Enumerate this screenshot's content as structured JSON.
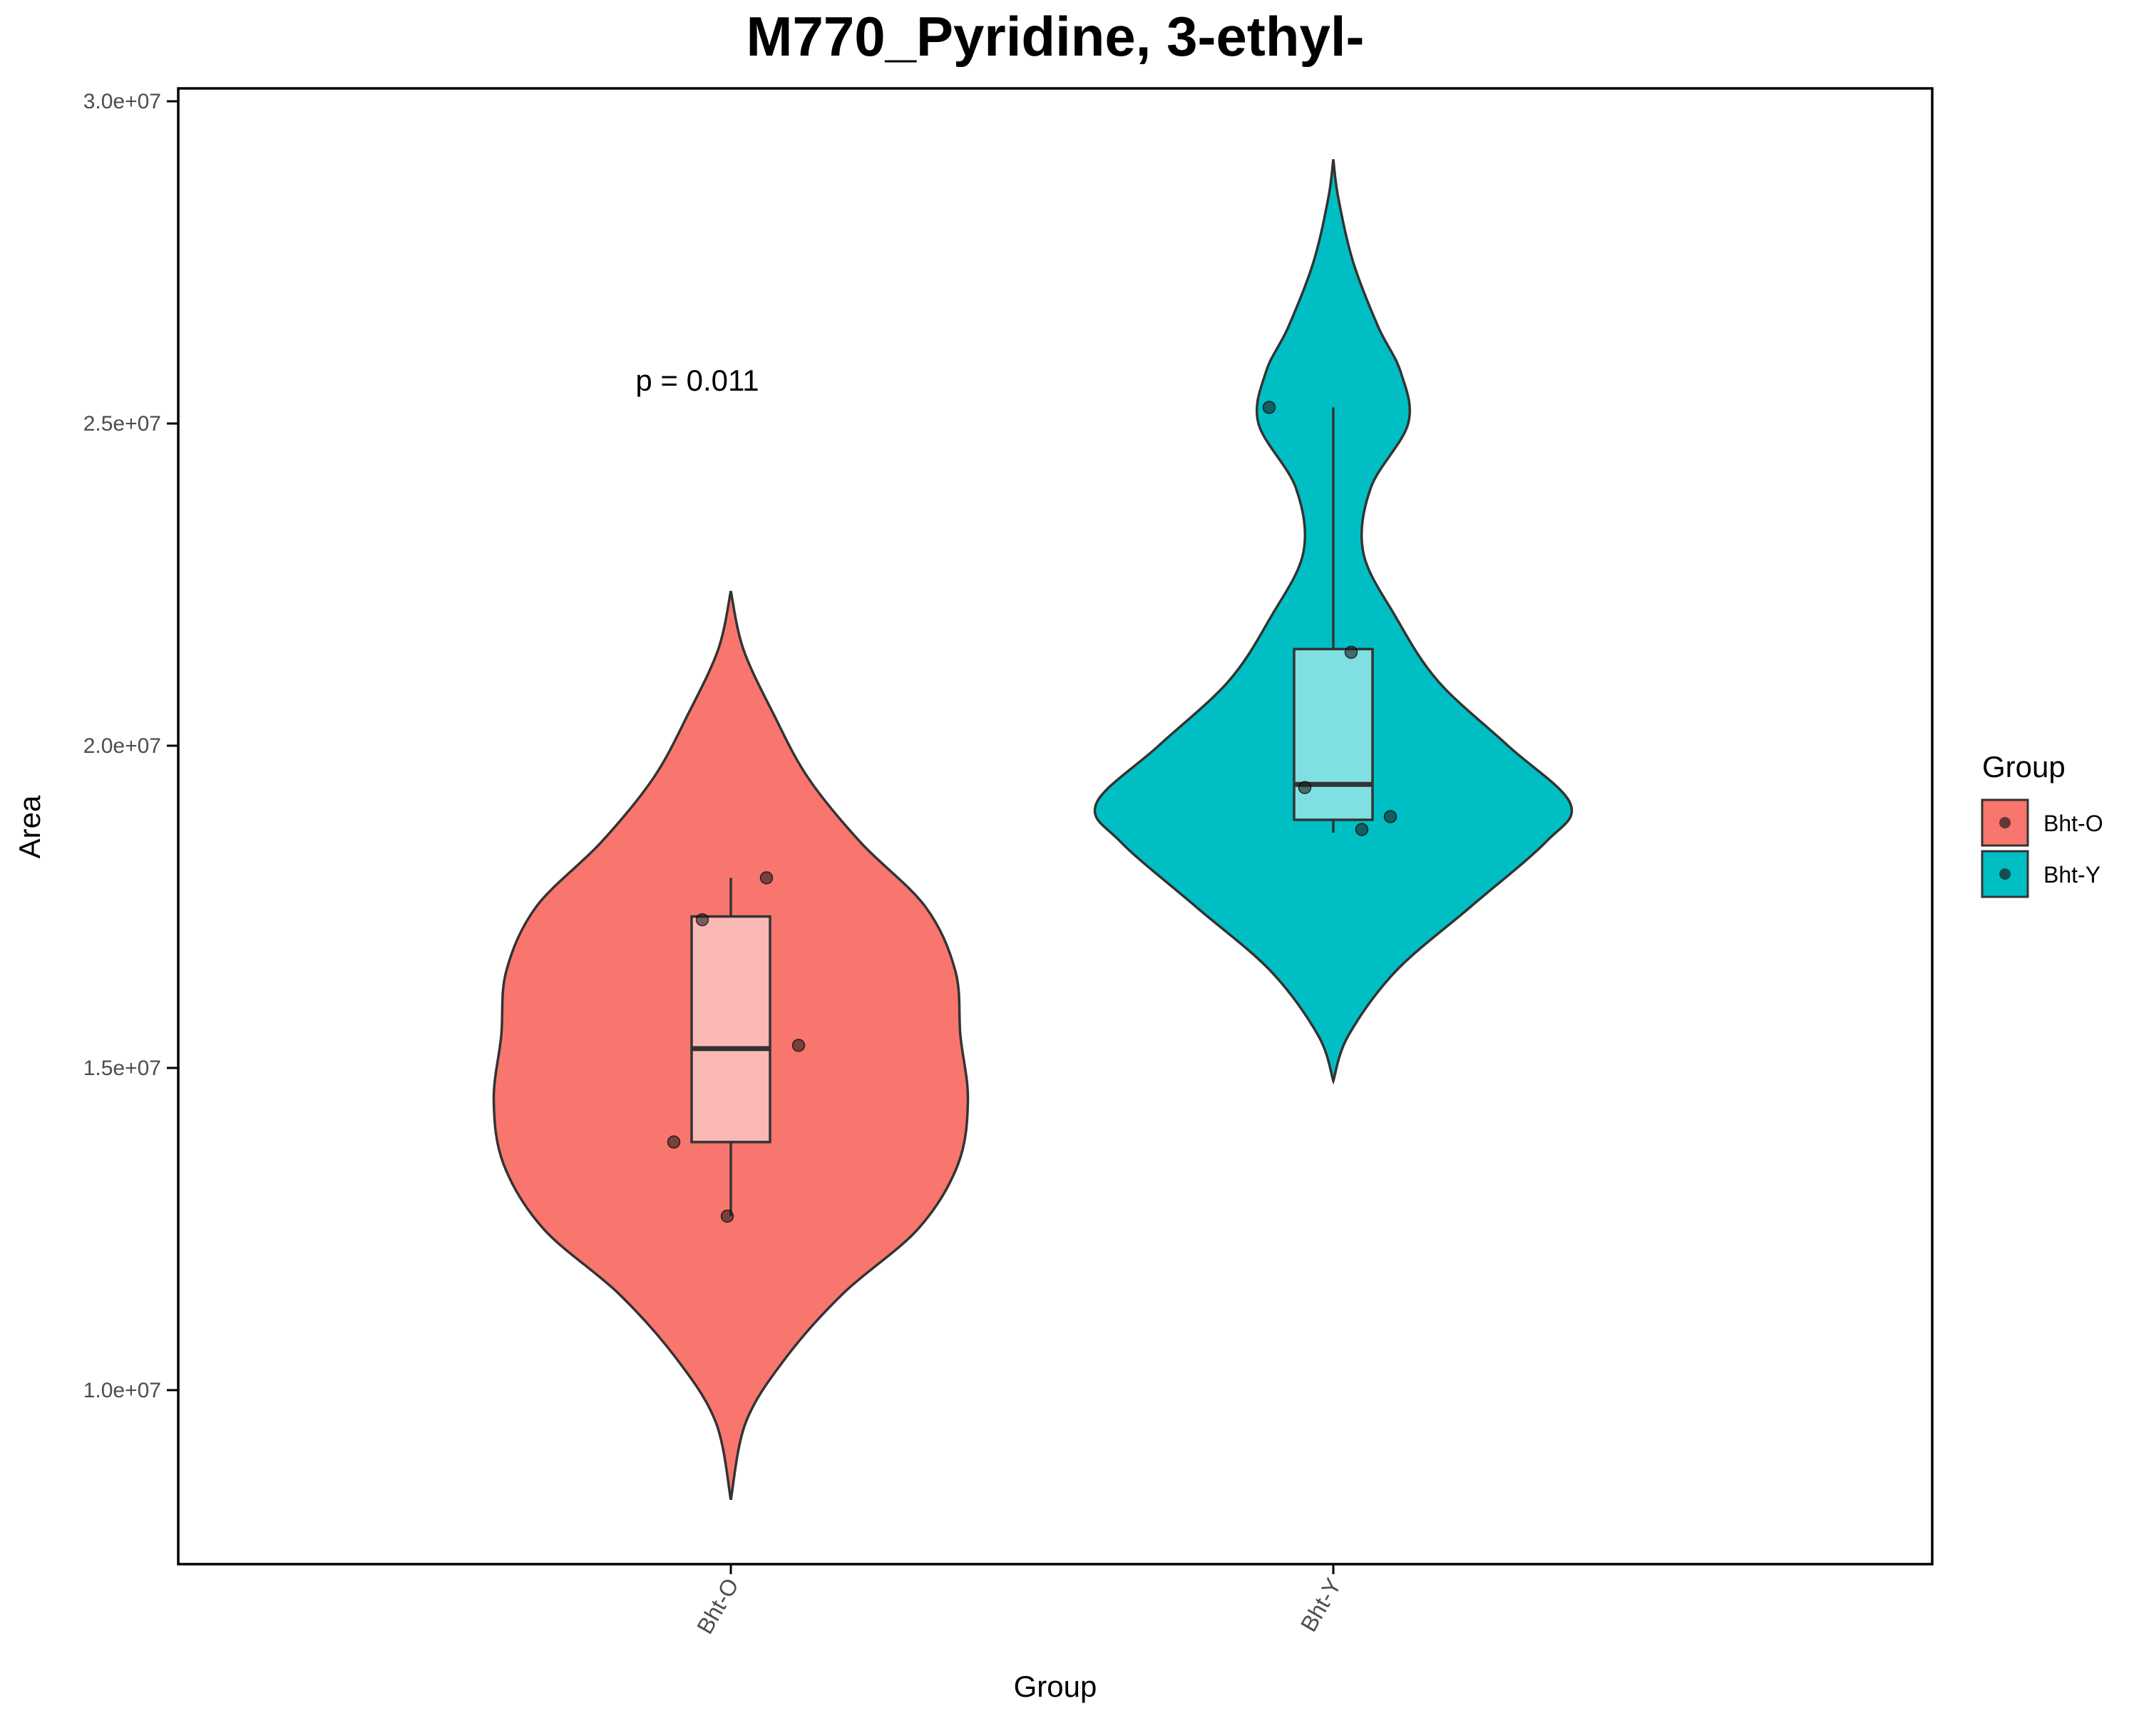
{
  "chart_data": {
    "type": "violin",
    "title": "M770_Pyridine, 3-ethyl-",
    "xlabel": "Group",
    "ylabel": "Area",
    "categories": [
      "Bht-O",
      "Bht-Y"
    ],
    "ylim": [
      7300000,
      30200000
    ],
    "yticks": [
      10000000,
      15000000,
      20000000,
      25000000,
      30000000
    ],
    "ytick_labels": [
      "1.0e+07",
      "1.5e+07",
      "2.0e+07",
      "2.5e+07",
      "3.0e+07"
    ],
    "annotation": "p = 0.011",
    "legend": {
      "title": "Group",
      "position": "right",
      "entries": [
        "Bht-O",
        "Bht-Y"
      ]
    },
    "series": [
      {
        "name": "Bht-O",
        "color": "#F8766D",
        "box_color": "#FBB9B5",
        "violin_range": [
          8300000,
          22400000
        ],
        "box": {
          "min": 12700000,
          "q1": 13850000,
          "median": 15300000,
          "q3": 17350000,
          "max": 17950000
        },
        "points": [
          {
            "x": -0.16,
            "y": 13850000
          },
          {
            "x": -0.08,
            "y": 17300000
          },
          {
            "x": -0.01,
            "y": 12700000
          },
          {
            "x": 0.1,
            "y": 17950000
          },
          {
            "x": 0.19,
            "y": 15350000
          }
        ],
        "density": [
          [
            8300000,
            0.0
          ],
          [
            9500000,
            0.06
          ],
          [
            10500000,
            0.22
          ],
          [
            11500000,
            0.45
          ],
          [
            12500000,
            0.75
          ],
          [
            13500000,
            0.91
          ],
          [
            14500000,
            0.95
          ],
          [
            15500000,
            0.92
          ],
          [
            16500000,
            0.9
          ],
          [
            17500000,
            0.78
          ],
          [
            18500000,
            0.52
          ],
          [
            19500000,
            0.31
          ],
          [
            20500000,
            0.17
          ],
          [
            21500000,
            0.05
          ],
          [
            22400000,
            0.0
          ]
        ]
      },
      {
        "name": "Bht-Y",
        "color": "#00BFC4",
        "box_color": "#80DFE2",
        "violin_range": [
          14800000,
          29100000
        ],
        "box": {
          "min": 18650000,
          "q1": 18850000,
          "median": 19400000,
          "q3": 21500000,
          "max": 25250000
        },
        "points": [
          {
            "x": -0.18,
            "y": 25250000
          },
          {
            "x": -0.08,
            "y": 19350000
          },
          {
            "x": 0.05,
            "y": 21450000
          },
          {
            "x": 0.08,
            "y": 18700000
          },
          {
            "x": 0.16,
            "y": 18900000
          }
        ],
        "density": [
          [
            14800000,
            0.0
          ],
          [
            15500000,
            0.06
          ],
          [
            16500000,
            0.25
          ],
          [
            17500000,
            0.55
          ],
          [
            18500000,
            0.85
          ],
          [
            19100000,
            0.95
          ],
          [
            20000000,
            0.7
          ],
          [
            21000000,
            0.42
          ],
          [
            22000000,
            0.25
          ],
          [
            23000000,
            0.12
          ],
          [
            24000000,
            0.15
          ],
          [
            25000000,
            0.3
          ],
          [
            25800000,
            0.27
          ],
          [
            26500000,
            0.18
          ],
          [
            27500000,
            0.08
          ],
          [
            28500000,
            0.02
          ],
          [
            29100000,
            0.0
          ]
        ]
      }
    ]
  }
}
